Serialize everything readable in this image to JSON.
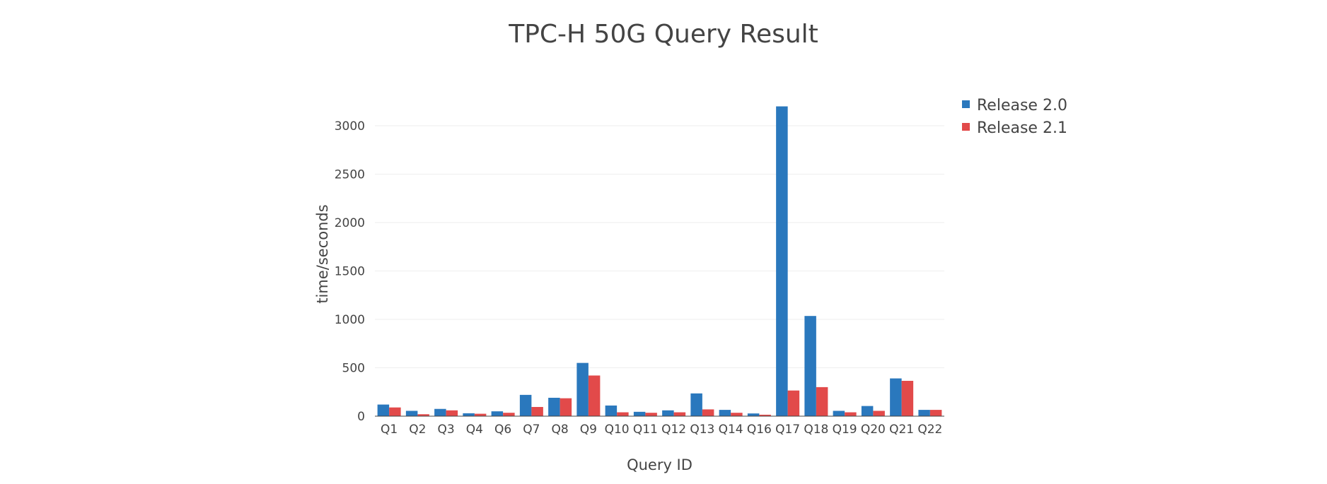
{
  "chart_data": {
    "type": "bar",
    "title": "TPC-H 50G Query Result",
    "xlabel": "Query ID",
    "ylabel": "time/seconds",
    "categories": [
      "Q1",
      "Q2",
      "Q3",
      "Q4",
      "Q6",
      "Q7",
      "Q8",
      "Q9",
      "Q10",
      "Q11",
      "Q12",
      "Q13",
      "Q14",
      "Q16",
      "Q17",
      "Q18",
      "Q19",
      "Q20",
      "Q21",
      "Q22"
    ],
    "series": [
      {
        "name": "Release 2.0",
        "color": "#2a78bd",
        "values": [
          120,
          55,
          75,
          30,
          50,
          220,
          190,
          550,
          110,
          45,
          60,
          235,
          65,
          28,
          3200,
          1035,
          55,
          105,
          390,
          65
        ]
      },
      {
        "name": "Release 2.1",
        "color": "#e24a4a",
        "values": [
          90,
          20,
          60,
          25,
          35,
          95,
          185,
          420,
          40,
          35,
          40,
          70,
          35,
          15,
          265,
          300,
          40,
          55,
          365,
          65
        ]
      }
    ],
    "ylim": [
      0,
      3350
    ],
    "yticks": [
      0,
      500,
      1000,
      1500,
      2000,
      2500,
      3000
    ],
    "grid": true,
    "legend_position": "top-right"
  }
}
